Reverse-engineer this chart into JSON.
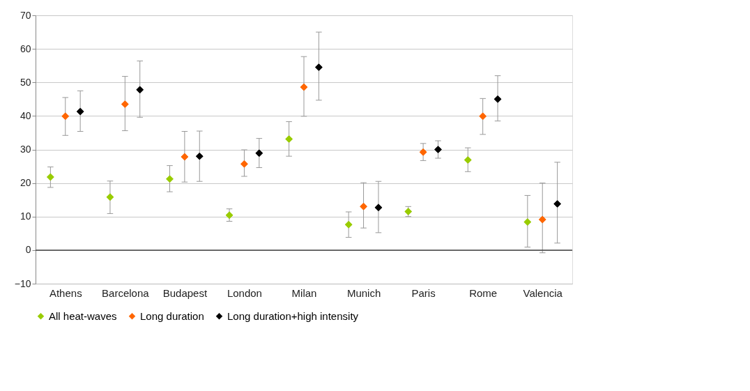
{
  "chart_data": {
    "type": "scatter",
    "categories": [
      "Athens",
      "Barcelona",
      "Budapest",
      "London",
      "Milan",
      "Munich",
      "Paris",
      "Rome",
      "Valencia"
    ],
    "series": [
      {
        "name": "All heat-waves",
        "color": "#99cc00",
        "values": [
          21.8,
          15.8,
          21.2,
          10.4,
          33.1,
          7.6,
          11.5,
          26.9,
          8.4
        ],
        "errors": [
          [
            18.7,
            24.8
          ],
          [
            10.9,
            20.6
          ],
          [
            17.4,
            25.2
          ],
          [
            8.6,
            12.3
          ],
          [
            28.0,
            38.3
          ],
          [
            3.8,
            11.4
          ],
          [
            10.0,
            13.0
          ],
          [
            23.4,
            30.5
          ],
          [
            0.9,
            16.3
          ]
        ]
      },
      {
        "name": "Long duration",
        "color": "#ff6600",
        "values": [
          39.9,
          43.5,
          27.8,
          25.7,
          48.6,
          13.0,
          29.2,
          39.9,
          9.1
        ],
        "errors": [
          [
            34.2,
            45.5
          ],
          [
            35.6,
            51.8
          ],
          [
            20.3,
            35.4
          ],
          [
            22.0,
            29.9
          ],
          [
            39.9,
            57.7
          ],
          [
            6.6,
            20.1
          ],
          [
            26.7,
            31.8
          ],
          [
            34.5,
            45.2
          ],
          [
            -0.8,
            20.0
          ]
        ]
      },
      {
        "name": "Long duration+high intensity",
        "color": "#000000",
        "values": [
          41.3,
          47.8,
          28.0,
          28.9,
          54.5,
          12.7,
          30.0,
          45.0,
          13.8
        ],
        "errors": [
          [
            35.4,
            47.5
          ],
          [
            39.6,
            56.4
          ],
          [
            20.5,
            35.5
          ],
          [
            24.6,
            33.3
          ],
          [
            44.7,
            65.0
          ],
          [
            5.2,
            20.5
          ],
          [
            27.4,
            32.6
          ],
          [
            38.5,
            52.0
          ],
          [
            2.1,
            26.2
          ]
        ]
      }
    ],
    "ylim": [
      -10,
      70
    ],
    "yticks": [
      -10,
      0,
      10,
      20,
      30,
      40,
      50,
      60,
      70
    ],
    "ref_lines": [
      {
        "axis": "y",
        "value": 0,
        "color": "#404040"
      }
    ],
    "grid": "y",
    "legend": "bottom",
    "marker": "diamond"
  }
}
